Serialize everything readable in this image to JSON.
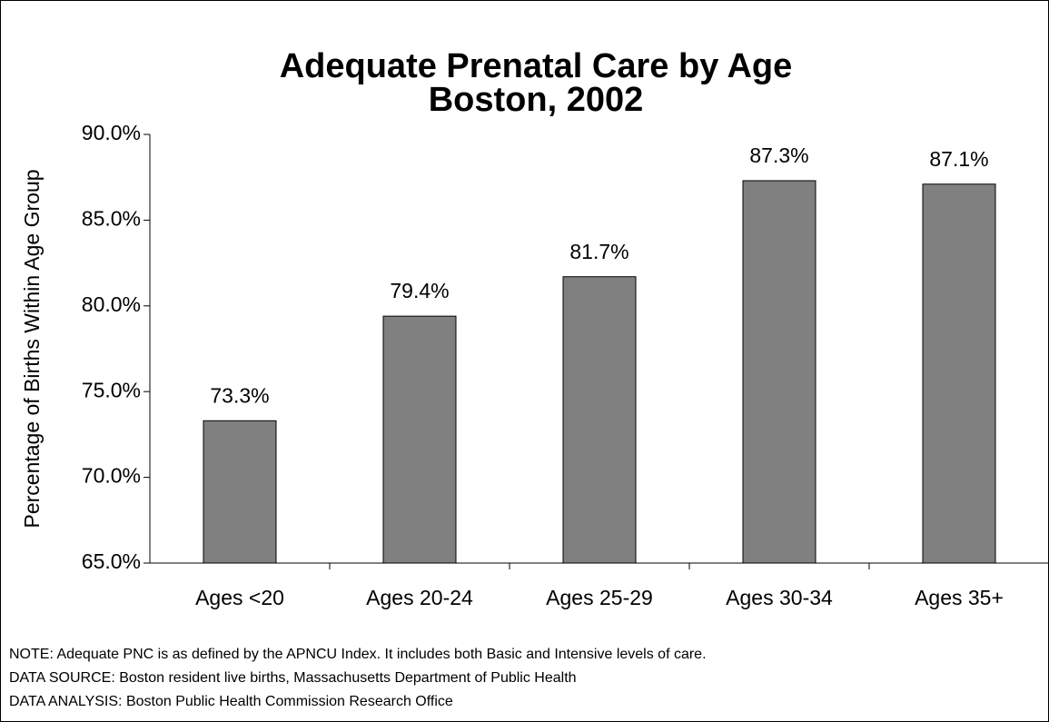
{
  "chart_data": {
    "type": "bar",
    "title": "Adequate Prenatal Care by Age",
    "subtitle": "Boston, 2002",
    "y_label": "Percentage of Births Within Age Group",
    "categories": [
      "Ages <20",
      "Ages 20-24",
      "Ages 25-29",
      "Ages 30-34",
      "Ages 35+"
    ],
    "values": [
      73.3,
      79.4,
      81.7,
      87.3,
      87.1
    ],
    "value_labels": [
      "73.3%",
      "79.4%",
      "81.7%",
      "87.3%",
      "87.1%"
    ],
    "color": "#808080",
    "ylim": [
      65,
      90
    ],
    "yticks": [
      {
        "value": 65,
        "label": "65.0%"
      },
      {
        "value": 70,
        "label": "70.0%"
      },
      {
        "value": 75,
        "label": "75.0%"
      },
      {
        "value": 80,
        "label": "80.0%"
      },
      {
        "value": 85,
        "label": "85.0%"
      },
      {
        "value": 90,
        "label": "90.0%"
      }
    ],
    "grid": false,
    "notes": [
      "NOTE:  Adequate PNC is as defined by the APNCU Index.  It includes both Basic and Intensive levels of care.",
      "DATA SOURCE:  Boston resident live births, Massachusetts Department of Public Health",
      "DATA ANALYSIS:  Boston Public Health Commission Research Office"
    ]
  }
}
